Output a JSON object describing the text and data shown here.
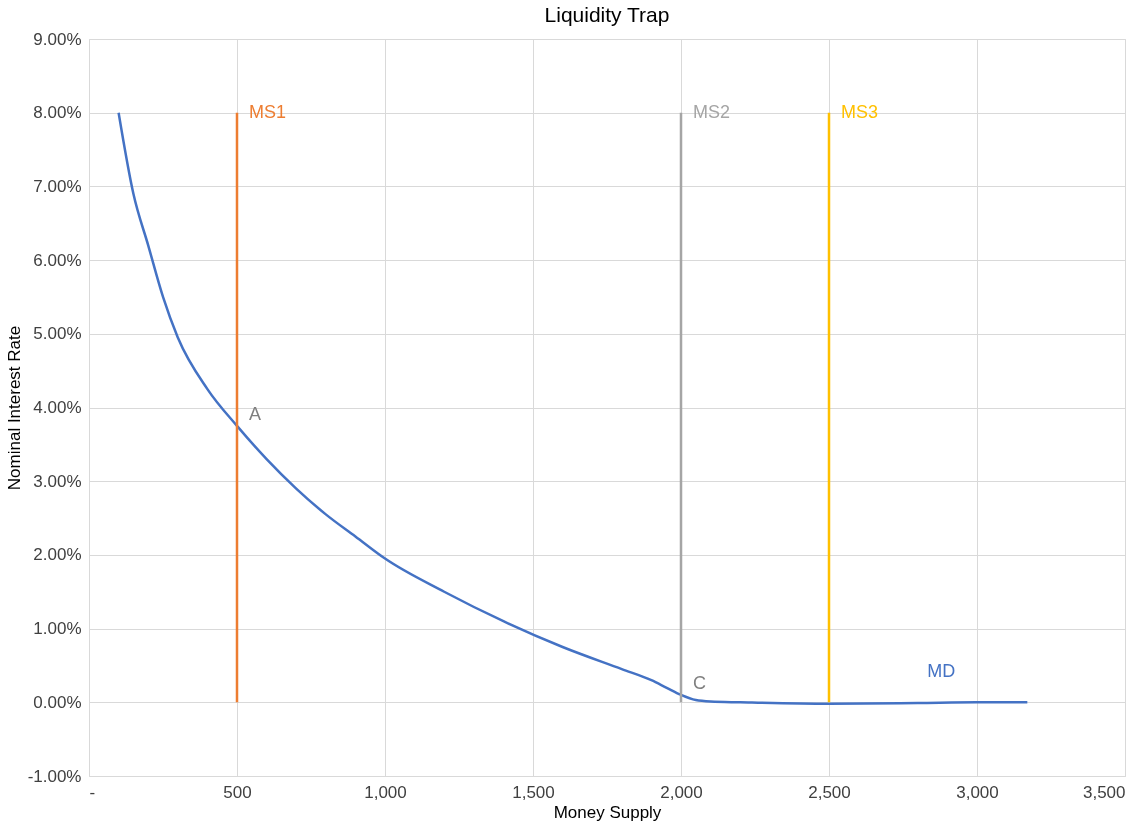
{
  "chart_data": {
    "type": "line",
    "title": "Liquidity Trap",
    "xlabel": "Money Supply",
    "ylabel": "Nominal Interest Rate",
    "series": [
      {
        "name": "MD",
        "color": "#4472c4",
        "x": [
          100,
          150,
          200,
          250,
          300,
          400,
          500,
          600,
          700,
          800,
          900,
          1000,
          1200,
          1400,
          1600,
          1800,
          1900,
          1950,
          2000,
          2050,
          2100,
          2200,
          2500,
          2800,
          3000,
          3170
        ],
        "values": [
          8.0,
          6.9,
          6.2,
          5.5,
          4.95,
          4.25,
          3.75,
          3.3,
          2.9,
          2.55,
          2.25,
          1.95,
          1.5,
          1.1,
          0.75,
          0.45,
          0.3,
          0.2,
          0.1,
          0.03,
          0.01,
          0.0,
          -0.02,
          -0.01,
          0.0,
          0.0
        ]
      },
      {
        "name": "MS1",
        "color": "#ed7d31",
        "x": [
          500,
          500
        ],
        "values": [
          0,
          8
        ]
      },
      {
        "name": "MS2",
        "color": "#a5a5a5",
        "x": [
          2000,
          2000
        ],
        "values": [
          0,
          8
        ]
      },
      {
        "name": "MS3",
        "color": "#ffc000",
        "x": [
          2500,
          2500
        ],
        "values": [
          0,
          8
        ]
      }
    ],
    "xlim": [
      0,
      3500
    ],
    "xticks": [
      {
        "value": 0,
        "label": "-"
      },
      500,
      {
        "value": 1000,
        "label": "1,000"
      },
      {
        "value": 1500,
        "label": "1,500"
      },
      {
        "value": 2000,
        "label": "2,000"
      },
      {
        "value": 2500,
        "label": "2,500"
      },
      {
        "value": 3000,
        "label": "3,000"
      },
      {
        "value": 3500,
        "label": "3,500"
      }
    ],
    "ylim": [
      -1,
      9
    ],
    "yticks": [
      {
        "value": -1,
        "label": "-1.00%"
      },
      {
        "value": 0,
        "label": "0.00%"
      },
      {
        "value": 1,
        "label": "1.00%"
      },
      {
        "value": 2,
        "label": "2.00%"
      },
      {
        "value": 3,
        "label": "3.00%"
      },
      {
        "value": 4,
        "label": "4.00%"
      },
      {
        "value": 5,
        "label": "5.00%"
      },
      {
        "value": 6,
        "label": "6.00%"
      },
      {
        "value": 7,
        "label": "7.00%"
      },
      {
        "value": 8,
        "label": "8.00%"
      },
      {
        "value": 9,
        "label": "9.00%"
      }
    ],
    "annotations": [
      {
        "text": "A",
        "x": 500,
        "y": 3.75
      },
      {
        "text": "C",
        "x": 2000,
        "y": 0.1
      }
    ],
    "grid": true,
    "legend": false,
    "marker": "none",
    "line_style": "solid"
  }
}
